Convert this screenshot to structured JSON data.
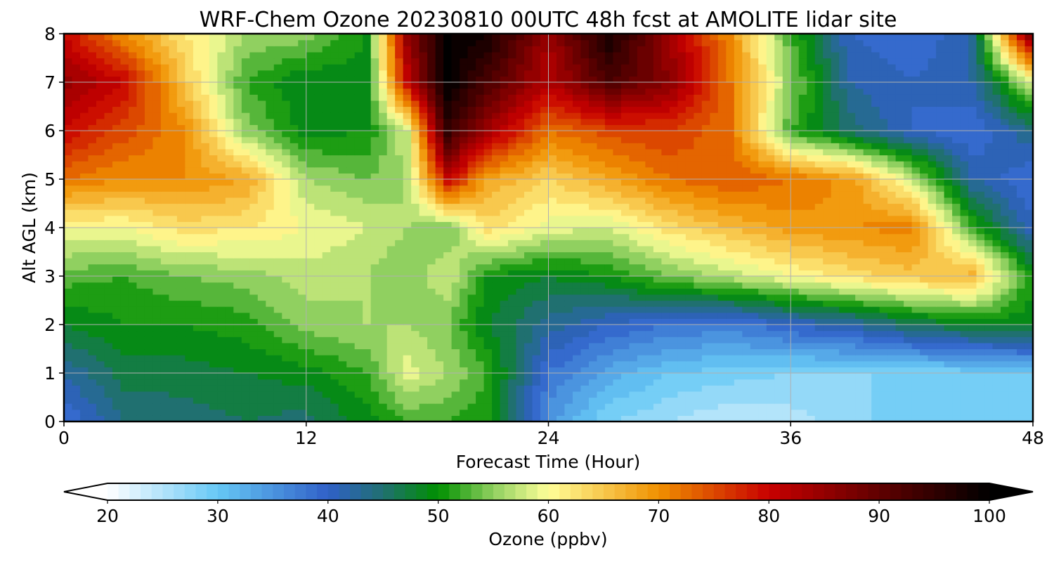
{
  "chart_data": {
    "type": "heatmap",
    "title": "WRF-Chem Ozone  20230810 00UTC 48h fcst at AMOLITE lidar site",
    "xlabel": "Forecast Time (Hour)",
    "ylabel": "Alt AGL (km)",
    "xlim": [
      0,
      48
    ],
    "ylim": [
      0,
      8
    ],
    "grid": true,
    "xticks": [
      "0",
      "12",
      "24",
      "36",
      "48"
    ],
    "yticks": [
      "0",
      "1",
      "2",
      "3",
      "4",
      "5",
      "6",
      "7",
      "8"
    ],
    "colorbar": {
      "label": "Ozone  (ppbv)",
      "range": [
        20,
        100
      ],
      "ticks": [
        "20",
        "30",
        "40",
        "50",
        "60",
        "70",
        "80",
        "90",
        "100"
      ],
      "extend": "both",
      "colors": [
        {
          "value": 20,
          "color": "#ffffff"
        },
        {
          "value": 30,
          "color": "#66c8f5"
        },
        {
          "value": 40,
          "color": "#3060c8"
        },
        {
          "value": 45,
          "color": "#207070"
        },
        {
          "value": 50,
          "color": "#009000"
        },
        {
          "value": 55,
          "color": "#90d060"
        },
        {
          "value": 60,
          "color": "#ffff99"
        },
        {
          "value": 70,
          "color": "#f09000"
        },
        {
          "value": 80,
          "color": "#c80000"
        },
        {
          "value": 90,
          "color": "#600000"
        },
        {
          "value": 100,
          "color": "#000000"
        }
      ]
    },
    "x": [
      0,
      3,
      6,
      9,
      12,
      15,
      17,
      19,
      21,
      24,
      27,
      30,
      33,
      36,
      39,
      42,
      45,
      48
    ],
    "y": [
      0,
      1,
      2,
      3,
      4,
      5,
      6,
      7,
      8
    ],
    "z": [
      [
        38,
        44,
        45,
        46,
        45,
        49,
        52,
        52,
        50,
        35,
        28,
        26,
        24,
        25,
        27,
        30,
        30,
        30
      ],
      [
        42,
        47,
        47,
        48,
        49,
        52,
        59,
        56,
        52,
        38,
        33,
        30,
        29,
        28,
        28,
        28,
        29,
        30
      ],
      [
        48,
        50,
        50,
        51,
        55,
        56,
        56,
        54,
        48,
        43,
        40,
        38,
        37,
        40,
        42,
        46,
        48,
        49
      ],
      [
        53,
        52,
        54,
        55,
        57,
        56,
        54,
        58,
        50,
        48,
        50,
        54,
        57,
        60,
        63,
        65,
        67,
        50
      ],
      [
        60,
        60,
        63,
        62,
        60,
        58,
        56,
        54,
        63,
        59,
        58,
        63,
        66,
        69,
        70,
        71,
        52,
        40
      ],
      [
        72,
        70,
        70,
        68,
        56,
        54,
        56,
        80,
        68,
        64,
        68,
        72,
        74,
        72,
        69,
        58,
        42,
        38
      ],
      [
        80,
        75,
        70,
        55,
        49,
        50,
        58,
        95,
        84,
        72,
        75,
        76,
        72,
        52,
        45,
        40,
        38,
        44
      ],
      [
        85,
        80,
        65,
        52,
        48,
        49,
        80,
        100,
        92,
        82,
        92,
        86,
        72,
        55,
        42,
        40,
        42,
        58
      ],
      [
        80,
        70,
        62,
        56,
        55,
        50,
        85,
        100,
        98,
        84,
        98,
        84,
        70,
        52,
        40,
        38,
        42,
        90
      ]
    ]
  }
}
